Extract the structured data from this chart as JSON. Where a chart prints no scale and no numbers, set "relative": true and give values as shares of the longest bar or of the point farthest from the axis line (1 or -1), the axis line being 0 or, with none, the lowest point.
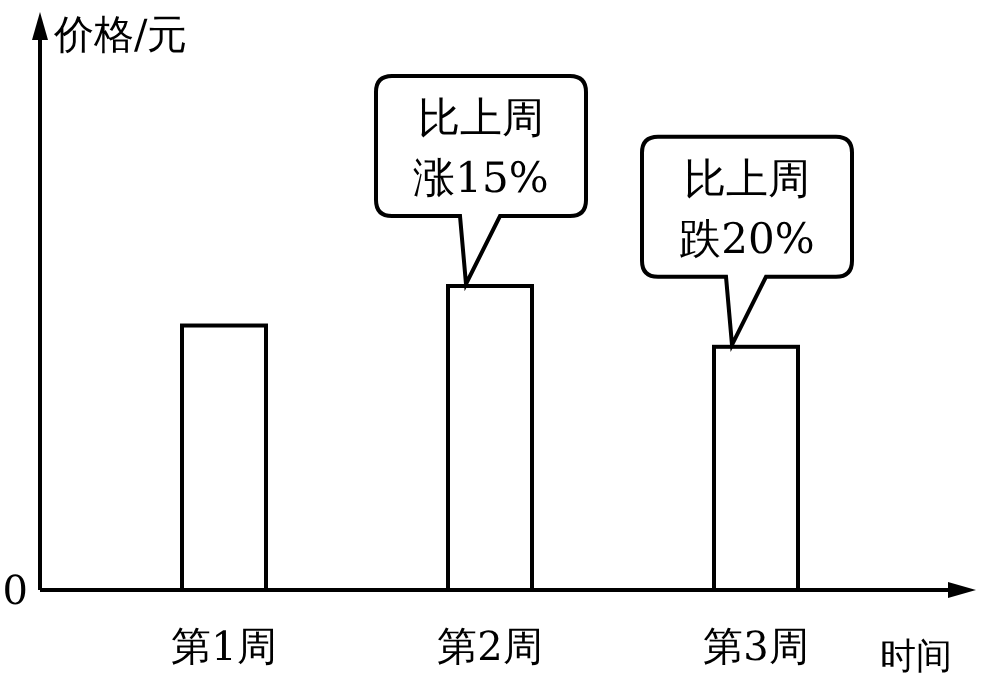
{
  "chart_data": {
    "type": "bar",
    "relative": true,
    "xlabel": "时间",
    "categories": [
      "第1周",
      "第2周",
      "第3周"
    ],
    "values": [
      0.87,
      1,
      0.8
    ],
    "color": "#ffffff",
    "annotations": [
      {
        "text": "比上周涨15%",
        "x": "第2周",
        "y": 1
      },
      {
        "text": "比上周跌20%",
        "x": "第3周",
        "y": 0.8
      },
      "价格/元",
      "0"
    ]
  }
}
